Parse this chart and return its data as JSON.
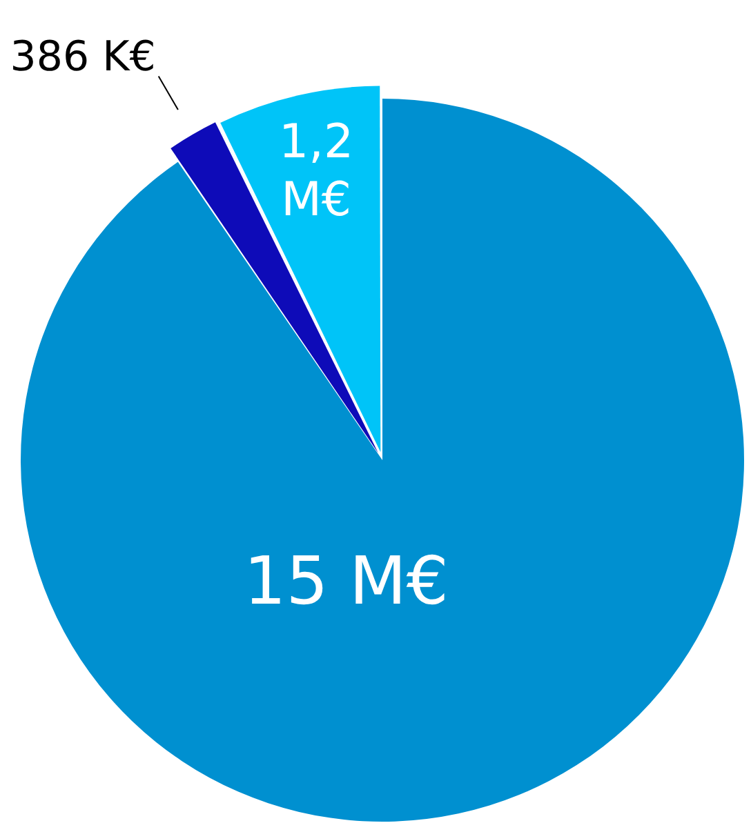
{
  "chart_data": {
    "type": "pie",
    "categories": [
      null,
      null,
      null
    ],
    "values": [
      15,
      0.386,
      1.2
    ],
    "colors": [
      "#0090d0",
      "#0e0bb8",
      "#00c4f8"
    ],
    "value_labels": [
      "15 M€",
      "386 K€",
      "1,2 M€"
    ],
    "legend": false
  }
}
